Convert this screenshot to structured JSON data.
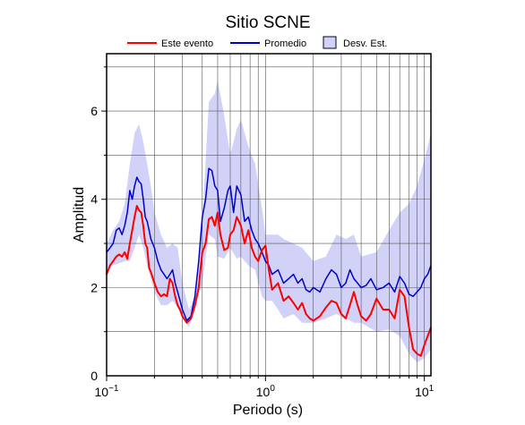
{
  "chart_data": {
    "type": "line",
    "title": "Sitio SCNE",
    "xlabel": "Periodo (s)",
    "ylabel": "Amplitud",
    "x_scale": "log",
    "xlim": [
      0.1,
      11
    ],
    "ylim": [
      0,
      7.3
    ],
    "grid": true,
    "legend_position": "top-center",
    "x_ticks": [
      {
        "value": 0.1,
        "base": "10",
        "exp": "−1"
      },
      {
        "value": 1,
        "base": "10",
        "exp": "0"
      },
      {
        "value": 10,
        "base": "10",
        "exp": "1"
      }
    ],
    "y_ticks": [
      0,
      2,
      4,
      6
    ],
    "colors": {
      "evento": "#ff0000",
      "promedio": "#0000cc",
      "desv": "#d2d2f8",
      "desv_edge": "#000033"
    },
    "series": [
      {
        "name": "Este evento",
        "x": [
          0.1,
          0.105,
          0.11,
          0.115,
          0.12,
          0.125,
          0.13,
          0.135,
          0.14,
          0.145,
          0.15,
          0.155,
          0.16,
          0.165,
          0.17,
          0.175,
          0.18,
          0.185,
          0.19,
          0.2,
          0.21,
          0.22,
          0.23,
          0.24,
          0.25,
          0.26,
          0.27,
          0.28,
          0.29,
          0.3,
          0.32,
          0.34,
          0.36,
          0.38,
          0.4,
          0.42,
          0.44,
          0.46,
          0.48,
          0.5,
          0.52,
          0.55,
          0.58,
          0.6,
          0.63,
          0.66,
          0.7,
          0.74,
          0.78,
          0.82,
          0.86,
          0.9,
          0.95,
          1.0,
          1.05,
          1.1,
          1.2,
          1.3,
          1.4,
          1.5,
          1.6,
          1.7,
          1.8,
          1.9,
          2.0,
          2.2,
          2.4,
          2.6,
          2.8,
          3.0,
          3.2,
          3.4,
          3.6,
          3.8,
          4.0,
          4.3,
          4.6,
          5.0,
          5.5,
          6.0,
          6.5,
          7.0,
          7.5,
          8.0,
          8.5,
          9.0,
          9.5,
          10.0,
          10.5,
          11.0
        ],
        "y": [
          2.3,
          2.5,
          2.6,
          2.7,
          2.75,
          2.7,
          2.8,
          2.65,
          3.0,
          3.3,
          3.6,
          3.85,
          3.75,
          3.7,
          3.4,
          3.0,
          2.9,
          2.45,
          2.35,
          2.1,
          1.9,
          1.8,
          1.85,
          1.8,
          2.2,
          2.1,
          1.8,
          1.6,
          1.5,
          1.35,
          1.2,
          1.3,
          1.6,
          2.0,
          2.8,
          3.0,
          3.55,
          3.6,
          3.4,
          3.7,
          3.2,
          2.85,
          2.9,
          3.2,
          3.3,
          3.6,
          3.4,
          3.0,
          3.3,
          2.9,
          2.7,
          2.6,
          2.85,
          2.95,
          2.4,
          1.95,
          2.1,
          1.7,
          1.8,
          1.65,
          1.5,
          1.65,
          1.4,
          1.3,
          1.25,
          1.35,
          1.55,
          1.7,
          1.65,
          1.4,
          1.3,
          1.6,
          1.9,
          1.6,
          1.35,
          1.25,
          1.4,
          1.75,
          1.5,
          1.5,
          1.3,
          1.95,
          1.8,
          1.1,
          0.6,
          0.5,
          0.45,
          0.7,
          0.9,
          1.1
        ]
      },
      {
        "name": "Promedio",
        "x": [
          0.1,
          0.105,
          0.11,
          0.115,
          0.12,
          0.125,
          0.13,
          0.135,
          0.14,
          0.145,
          0.15,
          0.155,
          0.16,
          0.165,
          0.17,
          0.175,
          0.18,
          0.185,
          0.19,
          0.2,
          0.21,
          0.22,
          0.23,
          0.24,
          0.25,
          0.26,
          0.27,
          0.28,
          0.29,
          0.3,
          0.32,
          0.34,
          0.36,
          0.38,
          0.4,
          0.42,
          0.44,
          0.46,
          0.48,
          0.5,
          0.52,
          0.55,
          0.58,
          0.6,
          0.63,
          0.66,
          0.7,
          0.74,
          0.78,
          0.82,
          0.86,
          0.9,
          0.95,
          1.0,
          1.05,
          1.1,
          1.2,
          1.3,
          1.4,
          1.5,
          1.6,
          1.7,
          1.8,
          1.9,
          2.0,
          2.2,
          2.4,
          2.6,
          2.8,
          3.0,
          3.2,
          3.4,
          3.6,
          3.8,
          4.0,
          4.3,
          4.6,
          5.0,
          5.5,
          6.0,
          6.5,
          7.0,
          7.5,
          8.0,
          8.5,
          9.0,
          9.5,
          10.0,
          10.5,
          11.0
        ],
        "y": [
          2.8,
          2.9,
          3.0,
          3.3,
          3.35,
          3.2,
          3.4,
          3.7,
          4.2,
          4.0,
          4.3,
          4.5,
          4.4,
          4.35,
          4.0,
          3.6,
          3.5,
          3.3,
          3.1,
          2.9,
          2.6,
          2.4,
          2.3,
          2.2,
          2.3,
          2.4,
          2.1,
          1.9,
          1.7,
          1.5,
          1.25,
          1.35,
          1.8,
          2.6,
          3.6,
          4.0,
          4.7,
          4.65,
          4.3,
          4.2,
          3.5,
          3.8,
          4.2,
          4.3,
          3.7,
          4.3,
          4.1,
          3.5,
          3.6,
          3.3,
          3.1,
          3.0,
          2.8,
          2.6,
          2.5,
          2.3,
          2.4,
          2.1,
          2.2,
          2.3,
          2.1,
          2.2,
          1.95,
          1.9,
          2.0,
          1.9,
          2.2,
          2.4,
          2.3,
          2.0,
          2.1,
          2.4,
          2.2,
          2.1,
          2.0,
          2.05,
          2.2,
          1.95,
          2.0,
          2.1,
          1.9,
          2.25,
          2.1,
          1.85,
          1.8,
          1.9,
          2.0,
          2.2,
          2.3,
          2.5
        ]
      },
      {
        "name": "Desv. Est.",
        "x": [
          0.1,
          0.11,
          0.12,
          0.13,
          0.14,
          0.15,
          0.16,
          0.17,
          0.18,
          0.19,
          0.2,
          0.22,
          0.24,
          0.26,
          0.28,
          0.3,
          0.33,
          0.36,
          0.4,
          0.44,
          0.48,
          0.5,
          0.55,
          0.6,
          0.66,
          0.7,
          0.78,
          0.86,
          0.95,
          1.0,
          1.1,
          1.2,
          1.3,
          1.5,
          1.7,
          2.0,
          2.4,
          2.8,
          3.2,
          3.6,
          4.0,
          5.0,
          6.0,
          7.0,
          8.0,
          9.0,
          10.0,
          11.0
        ],
        "upper": [
          3.0,
          3.3,
          3.5,
          3.9,
          4.8,
          5.5,
          5.7,
          5.3,
          4.8,
          4.3,
          3.7,
          3.2,
          2.9,
          3.0,
          2.9,
          2.1,
          1.5,
          1.8,
          3.5,
          6.2,
          6.4,
          6.7,
          5.9,
          5.0,
          5.6,
          5.8,
          5.2,
          4.8,
          3.8,
          3.2,
          3.2,
          3.2,
          3.1,
          3.0,
          2.9,
          2.6,
          2.7,
          3.2,
          3.1,
          3.2,
          2.7,
          2.8,
          3.3,
          3.7,
          3.9,
          4.3,
          4.9,
          5.5
        ],
        "lower": [
          2.4,
          2.5,
          2.55,
          2.6,
          2.6,
          2.9,
          3.2,
          2.9,
          2.5,
          2.2,
          1.9,
          1.6,
          1.6,
          1.7,
          1.55,
          1.3,
          1.1,
          1.5,
          2.1,
          3.2,
          3.1,
          2.7,
          2.65,
          2.9,
          2.65,
          2.7,
          2.5,
          2.4,
          1.8,
          1.7,
          1.7,
          1.5,
          1.3,
          1.4,
          1.2,
          1.2,
          1.3,
          1.4,
          1.3,
          1.2,
          1.2,
          1.0,
          1.05,
          0.9,
          0.5,
          0.3,
          0.4,
          0.6
        ]
      }
    ]
  }
}
